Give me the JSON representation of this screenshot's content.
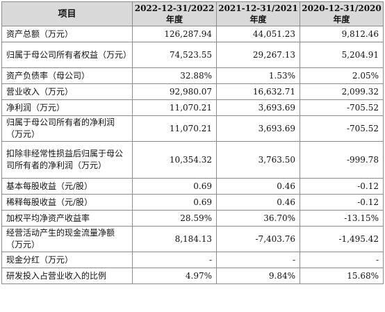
{
  "table": {
    "headers": [
      "项目",
      "2022-12-31/2022",
      "年度",
      "2021-12-31/2021",
      "年度",
      "2020-12-31/2020",
      "年度"
    ],
    "rows": [
      {
        "label": "资产总额（万元）",
        "v2022": "126,287.94",
        "v2021": "44,051.23",
        "v2020": "9,812.46"
      },
      {
        "label": "归属于母公司所有者权益（万元）",
        "v2022": "74,523.55",
        "v2021": "29,267.13",
        "v2020": "5,204.91"
      },
      {
        "label": "资产负债率（母公司）",
        "v2022": "32.88%",
        "v2021": "1.53%",
        "v2020": "2.05%"
      },
      {
        "label": "营业收入（万元）",
        "v2022": "92,980.07",
        "v2021": "16,632.71",
        "v2020": "2,099.32"
      },
      {
        "label": "净利润（万元）",
        "v2022": "11,070.21",
        "v2021": "3,693.69",
        "v2020": "-705.52"
      },
      {
        "label": "归属于母公司所有者的净利润（万元）",
        "v2022": "11,070.21",
        "v2021": "3,693.69",
        "v2020": "-705.52"
      },
      {
        "label": "扣除非经常性损益后归属于母公司所有者的净利润（万元）",
        "v2022": "10,354.32",
        "v2021": "3,763.50",
        "v2020": "-999.78"
      },
      {
        "label": "基本每股收益（元/股）",
        "v2022": "0.69",
        "v2021": "0.46",
        "v2020": "-0.12"
      },
      {
        "label": "稀释每股收益（元/股）",
        "v2022": "0.69",
        "v2021": "0.46",
        "v2020": "-0.12"
      },
      {
        "label": "加权平均净资产收益率",
        "v2022": "28.59%",
        "v2021": "36.70%",
        "v2020": "-13.15%"
      },
      {
        "label": "经营活动产生的现金流量净额（万元）",
        "v2022": "8,184.13",
        "v2021": "-7,403.76",
        "v2020": "-1,495.42"
      },
      {
        "label": "现金分红（万元）",
        "v2022": "-",
        "v2021": "-",
        "v2020": "-"
      },
      {
        "label": "研发投入占营业收入的比例",
        "v2022": "4.97%",
        "v2021": "9.84%",
        "v2020": "15.68%"
      }
    ]
  }
}
